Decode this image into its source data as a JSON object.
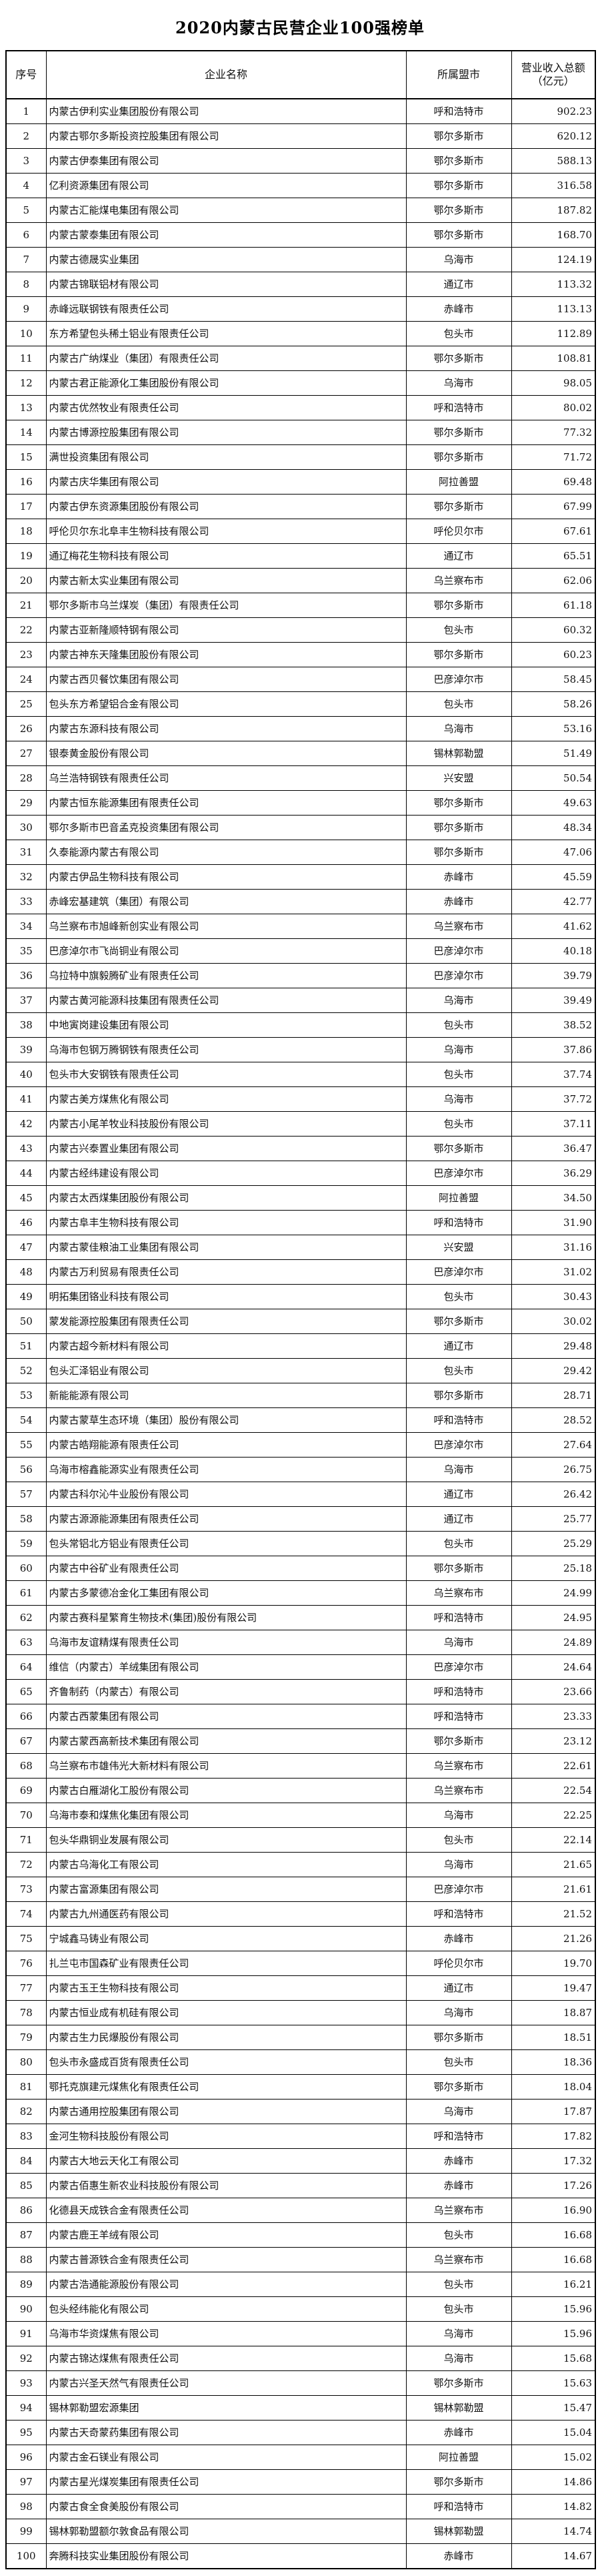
{
  "page": {
    "title": "2020内蒙古民营企业100强榜单"
  },
  "table": {
    "headers": {
      "rank": "序号",
      "name": "企业名称",
      "city": "所属盟市",
      "revenue": "营业收入总额（亿元）"
    },
    "rows": [
      [
        "1",
        "内蒙古伊利实业集团股份有限公司",
        "呼和浩特市",
        "902.23"
      ],
      [
        "2",
        "内蒙古鄂尔多斯投资控股集团有限公司",
        "鄂尔多斯市",
        "620.12"
      ],
      [
        "3",
        "内蒙古伊泰集团有限公司",
        "鄂尔多斯市",
        "588.13"
      ],
      [
        "4",
        "亿利资源集团有限公司",
        "鄂尔多斯市",
        "316.58"
      ],
      [
        "5",
        "内蒙古汇能煤电集团有限公司",
        "鄂尔多斯市",
        "187.82"
      ],
      [
        "6",
        "内蒙古蒙泰集团有限公司",
        "鄂尔多斯市",
        "168.70"
      ],
      [
        "7",
        "内蒙古德晟实业集团",
        "乌海市",
        "124.19"
      ],
      [
        "8",
        "内蒙古锦联铝材有限公司",
        "通辽市",
        "113.32"
      ],
      [
        "9",
        "赤峰远联钢铁有限责任公司",
        "赤峰市",
        "113.13"
      ],
      [
        "10",
        "东方希望包头稀土铝业有限责任公司",
        "包头市",
        "112.89"
      ],
      [
        "11",
        "内蒙古广纳煤业（集团）有限责任公司",
        "鄂尔多斯市",
        "108.81"
      ],
      [
        "12",
        "内蒙古君正能源化工集团股份有限公司",
        "乌海市",
        "98.05"
      ],
      [
        "13",
        "内蒙古优然牧业有限责任公司",
        "呼和浩特市",
        "80.02"
      ],
      [
        "14",
        "内蒙古博源控股集团有限公司",
        "鄂尔多斯市",
        "77.32"
      ],
      [
        "15",
        "满世投资集团有限公司",
        "鄂尔多斯市",
        "71.72"
      ],
      [
        "16",
        "内蒙古庆华集团有限公司",
        "阿拉善盟",
        "69.48"
      ],
      [
        "17",
        "内蒙古伊东资源集团股份有限公司",
        "鄂尔多斯市",
        "67.99"
      ],
      [
        "18",
        "呼伦贝尔东北阜丰生物科技有限公司",
        "呼伦贝尔市",
        "67.61"
      ],
      [
        "19",
        "通辽梅花生物科技有限公司",
        "通辽市",
        "65.51"
      ],
      [
        "20",
        "内蒙古新太实业集团有限公司",
        "乌兰察布市",
        "62.06"
      ],
      [
        "21",
        "鄂尔多斯市乌兰煤炭（集团）有限责任公司",
        "鄂尔多斯市",
        "61.18"
      ],
      [
        "22",
        "内蒙古亚新隆顺特钢有限公司",
        "包头市",
        "60.32"
      ],
      [
        "23",
        "内蒙古神东天隆集团股份有限公司",
        "鄂尔多斯市",
        "60.23"
      ],
      [
        "24",
        "内蒙古西贝餐饮集团有限公司",
        "巴彦淖尔市",
        "58.45"
      ],
      [
        "25",
        "包头东方希望铝合金有限公司",
        "包头市",
        "58.26"
      ],
      [
        "26",
        "内蒙古东源科技有限公司",
        "乌海市",
        "53.16"
      ],
      [
        "27",
        "银泰黄金股份有限公司",
        "锡林郭勒盟",
        "51.49"
      ],
      [
        "28",
        "乌兰浩特钢铁有限责任公司",
        "兴安盟",
        "50.54"
      ],
      [
        "29",
        "内蒙古恒东能源集团有限责任公司",
        "鄂尔多斯市",
        "49.63"
      ],
      [
        "30",
        "鄂尔多斯市巴音孟克投资集团有限公司",
        "鄂尔多斯市",
        "48.34"
      ],
      [
        "31",
        "久泰能源内蒙古有限公司",
        "鄂尔多斯市",
        "47.06"
      ],
      [
        "32",
        "内蒙古伊品生物科技有限公司",
        "赤峰市",
        "45.59"
      ],
      [
        "33",
        "赤峰宏基建筑（集团）有限公司",
        "赤峰市",
        "42.77"
      ],
      [
        "34",
        "乌兰察布市旭峰新创实业有限公司",
        "乌兰察布市",
        "41.62"
      ],
      [
        "35",
        "巴彦淖尔市飞尚铜业有限公司",
        "巴彦淖尔市",
        "40.18"
      ],
      [
        "36",
        "乌拉特中旗毅腾矿业有限责任公司",
        "巴彦淖尔市",
        "39.79"
      ],
      [
        "37",
        "内蒙古黄河能源科技集团有限责任公司",
        "乌海市",
        "39.49"
      ],
      [
        "38",
        "中地寅岗建设集团有限公司",
        "包头市",
        "38.52"
      ],
      [
        "39",
        "乌海市包钢万腾钢铁有限责任公司",
        "乌海市",
        "37.86"
      ],
      [
        "40",
        "包头市大安钢铁有限责任公司",
        "包头市",
        "37.74"
      ],
      [
        "41",
        "内蒙古美方煤焦化有限公司",
        "乌海市",
        "37.72"
      ],
      [
        "42",
        "内蒙古小尾羊牧业科技股份有限公司",
        "包头市",
        "37.11"
      ],
      [
        "43",
        "内蒙古兴泰置业集团有限公司",
        "鄂尔多斯市",
        "36.47"
      ],
      [
        "44",
        "内蒙古经纬建设有限公司",
        "巴彦淖尔市",
        "36.29"
      ],
      [
        "45",
        "内蒙古太西煤集团股份有限公司",
        "阿拉善盟",
        "34.50"
      ],
      [
        "46",
        "内蒙古阜丰生物科技有限公司",
        "呼和浩特市",
        "31.90"
      ],
      [
        "47",
        "内蒙古蒙佳粮油工业集团有限公司",
        "兴安盟",
        "31.16"
      ],
      [
        "48",
        "内蒙古万利贸易有限责任公司",
        "巴彦淖尔市",
        "31.02"
      ],
      [
        "49",
        "明拓集团铬业科技有限公司",
        "包头市",
        "30.43"
      ],
      [
        "50",
        "蒙发能源控股集团有限责任公司",
        "鄂尔多斯市",
        "30.02"
      ],
      [
        "51",
        "内蒙古超今新材料有限公司",
        "通辽市",
        "29.48"
      ],
      [
        "52",
        "包头汇泽铝业有限公司",
        "包头市",
        "29.42"
      ],
      [
        "53",
        "新能能源有限公司",
        "鄂尔多斯市",
        "28.71"
      ],
      [
        "54",
        "内蒙古蒙草生态环境（集团）股份有限公司",
        "呼和浩特市",
        "28.52"
      ],
      [
        "55",
        "内蒙古皓翔能源有限责任公司",
        "巴彦淖尔市",
        "27.64"
      ],
      [
        "56",
        "乌海市榕鑫能源实业有限责任公司",
        "乌海市",
        "26.75"
      ],
      [
        "57",
        "内蒙古科尔沁牛业股份有限公司",
        "通辽市",
        "26.42"
      ],
      [
        "58",
        "内蒙古源源能源集团有限责任公司",
        "通辽市",
        "25.77"
      ],
      [
        "59",
        "包头常铝北方铝业有限责任公司",
        "包头市",
        "25.29"
      ],
      [
        "60",
        "内蒙古中谷矿业有限责任公司",
        "鄂尔多斯市",
        "25.18"
      ],
      [
        "61",
        "内蒙古多蒙德冶金化工集团有限公司",
        "乌兰察布市",
        "24.99"
      ],
      [
        "62",
        "内蒙古赛科星繁育生物技术(集团)股份有限公司",
        "呼和浩特市",
        "24.95"
      ],
      [
        "63",
        "乌海市友谊精煤有限责任公司",
        "乌海市",
        "24.89"
      ],
      [
        "64",
        "维信（内蒙古）羊绒集团有限公司",
        "巴彦淖尔市",
        "24.64"
      ],
      [
        "65",
        "齐鲁制药（内蒙古）有限公司",
        "呼和浩特市",
        "23.66"
      ],
      [
        "66",
        "内蒙古西蒙集团有限公司",
        "呼和浩特市",
        "23.33"
      ],
      [
        "67",
        "内蒙古蒙西高新技术集团有限公司",
        "鄂尔多斯市",
        "23.12"
      ],
      [
        "68",
        "乌兰察布市雄伟光大新材料有限公司",
        "乌兰察布市",
        "22.61"
      ],
      [
        "69",
        "内蒙古白雁湖化工股份有限公司",
        "乌兰察布市",
        "22.54"
      ],
      [
        "70",
        "乌海市泰和煤焦化集团有限公司",
        "乌海市",
        "22.25"
      ],
      [
        "71",
        "包头华鼎铜业发展有限公司",
        "包头市",
        "22.14"
      ],
      [
        "72",
        "内蒙古乌海化工有限公司",
        "乌海市",
        "21.65"
      ],
      [
        "73",
        "内蒙古富源集团有限公司",
        "巴彦淖尔市",
        "21.61"
      ],
      [
        "74",
        "内蒙古九州通医药有限公司",
        "呼和浩特市",
        "21.52"
      ],
      [
        "75",
        "宁城鑫马铸业有限公司",
        "赤峰市",
        "21.26"
      ],
      [
        "76",
        "扎兰屯市国森矿业有限责任公司",
        "呼伦贝尔市",
        "19.70"
      ],
      [
        "77",
        "内蒙古玉王生物科技有限公司",
        "通辽市",
        "19.47"
      ],
      [
        "78",
        "内蒙古恒业成有机硅有限公司",
        "乌海市",
        "18.87"
      ],
      [
        "79",
        "内蒙古生力民爆股份有限公司",
        "鄂尔多斯市",
        "18.51"
      ],
      [
        "80",
        "包头市永盛成百货有限责任公司",
        "包头市",
        "18.36"
      ],
      [
        "81",
        "鄂托克旗建元煤焦化有限责任公司",
        "鄂尔多斯市",
        "18.04"
      ],
      [
        "82",
        "内蒙古通用控股集团有限公司",
        "乌海市",
        "17.87"
      ],
      [
        "83",
        "金河生物科技股份有限公司",
        "呼和浩特市",
        "17.82"
      ],
      [
        "84",
        "内蒙古大地云天化工有限公司",
        "赤峰市",
        "17.32"
      ],
      [
        "85",
        "内蒙古佰惠生新农业科技股份有限公司",
        "赤峰市",
        "17.26"
      ],
      [
        "86",
        "化德县天成铁合金有限责任公司",
        "乌兰察布市",
        "16.90"
      ],
      [
        "87",
        "内蒙古鹿王羊绒有限公司",
        "包头市",
        "16.68"
      ],
      [
        "88",
        "内蒙古普源铁合金有限责任公司",
        "乌兰察布市",
        "16.68"
      ],
      [
        "89",
        "内蒙古浩通能源股份有限公司",
        "包头市",
        "16.21"
      ],
      [
        "90",
        "包头经纬能化有限公司",
        "包头市",
        "15.96"
      ],
      [
        "91",
        "乌海市华资煤焦有限公司",
        "乌海市",
        "15.96"
      ],
      [
        "92",
        "内蒙古锦达煤焦有限责任公司",
        "乌海市",
        "15.68"
      ],
      [
        "93",
        "内蒙古兴圣天然气有限责任公司",
        "鄂尔多斯市",
        "15.63"
      ],
      [
        "94",
        "锡林郭勒盟宏源集团",
        "锡林郭勒盟",
        "15.47"
      ],
      [
        "95",
        "内蒙古天奇蒙药集团有限公司",
        "赤峰市",
        "15.04"
      ],
      [
        "96",
        "内蒙古金石镁业有限公司",
        "阿拉善盟",
        "15.02"
      ],
      [
        "97",
        "内蒙古星光煤炭集团有限责任公司",
        "鄂尔多斯市",
        "14.86"
      ],
      [
        "98",
        "内蒙古食全食美股份有限公司",
        "呼和浩特市",
        "14.82"
      ],
      [
        "99",
        "锡林郭勒盟额尔敦食品有限公司",
        "锡林郭勒盟",
        "14.74"
      ],
      [
        "100",
        "奔腾科技实业集团股份有限公司",
        "赤峰市",
        "14.67"
      ]
    ]
  }
}
